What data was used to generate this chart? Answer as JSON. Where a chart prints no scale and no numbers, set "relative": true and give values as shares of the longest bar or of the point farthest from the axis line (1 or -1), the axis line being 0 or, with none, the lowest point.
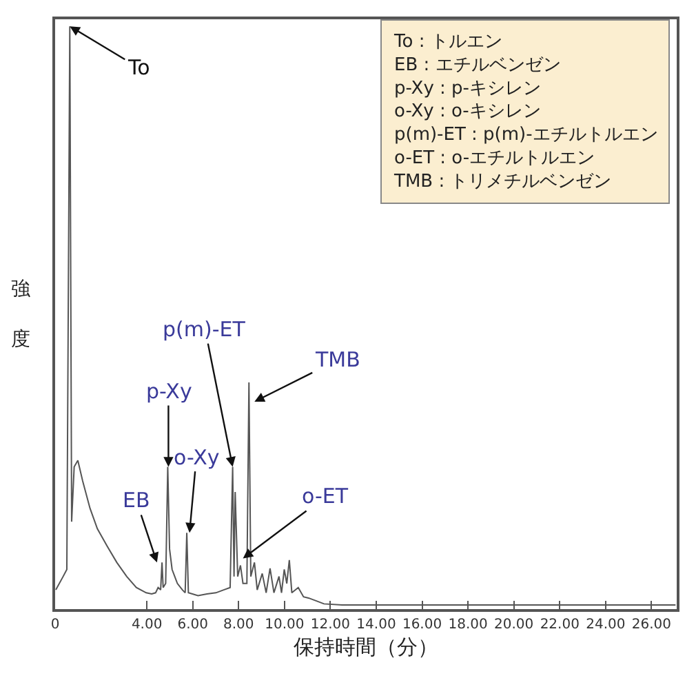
{
  "chart_data": {
    "type": "line",
    "relative": true,
    "xlabel": "保持時間（分）",
    "ylabel": "強度",
    "x": [
      0.03,
      0.35,
      0.51,
      0.64,
      0.72,
      0.83,
      0.99,
      1.2,
      1.52,
      1.84,
      2.27,
      2.69,
      3.12,
      3.54,
      3.97,
      4.21,
      4.38,
      4.49,
      4.6,
      4.66,
      4.71,
      4.82,
      4.91,
      4.99,
      5.1,
      5.33,
      5.55,
      5.67,
      5.74,
      5.81,
      6.23,
      6.62,
      7.01,
      7.35,
      7.63,
      7.74,
      7.8,
      7.85,
      7.96,
      8.08,
      8.19,
      8.36,
      8.45,
      8.53,
      8.69,
      8.81,
      9.03,
      9.2,
      9.37,
      9.54,
      9.76,
      9.87,
      9.99,
      10.1,
      10.21,
      10.32,
      10.6,
      10.83,
      11.05,
      11.39,
      11.72,
      12.51,
      14.19,
      27.05
    ],
    "series": [
      {
        "color": "#555555",
        "values": [
          0.033,
          0.056,
          0.068,
          1.0,
          0.15,
          0.244,
          0.255,
          0.22,
          0.173,
          0.138,
          0.108,
          0.08,
          0.056,
          0.037,
          0.028,
          0.026,
          0.028,
          0.037,
          0.033,
          0.08,
          0.037,
          0.044,
          0.244,
          0.103,
          0.068,
          0.044,
          0.033,
          0.028,
          0.131,
          0.028,
          0.023,
          0.026,
          0.028,
          0.033,
          0.037,
          0.244,
          0.056,
          0.201,
          0.056,
          0.075,
          0.044,
          0.044,
          0.389,
          0.056,
          0.08,
          0.033,
          0.061,
          0.028,
          0.07,
          0.028,
          0.056,
          0.028,
          0.068,
          0.044,
          0.084,
          0.028,
          0.037,
          0.021,
          0.019,
          0.014,
          0.009,
          0.007,
          0.007,
          0.007
        ]
      }
    ],
    "xlim": [
      0,
      27.1
    ],
    "xticks": [
      0,
      {
        "value": 4,
        "label": "4.00"
      },
      {
        "value": 6,
        "label": "6.00"
      },
      {
        "value": 8,
        "label": "8.00"
      },
      {
        "value": 10,
        "label": "10.00"
      },
      {
        "value": 12,
        "label": "12.00"
      },
      {
        "value": 14,
        "label": "14.00"
      },
      {
        "value": 16,
        "label": "16.00"
      },
      {
        "value": 18,
        "label": "18.00"
      },
      {
        "value": 20,
        "label": "20.00"
      },
      {
        "value": 22,
        "label": "22.00"
      },
      {
        "value": 24,
        "label": "24.00"
      },
      {
        "value": 26,
        "label": "26.00"
      }
    ],
    "legend": false,
    "marker": "none",
    "line_style": "solid",
    "annotations": [
      {
        "text": "To",
        "x": 0.64,
        "y": 1.0
      },
      {
        "text": "EB",
        "x": 4.44,
        "y": 0.08
      },
      {
        "text": "p-Xy",
        "x": 4.94,
        "y": 0.244
      },
      {
        "text": "o-Xy",
        "x": 5.86,
        "y": 0.131
      },
      {
        "text": "p(m)-ET",
        "x": 7.74,
        "y": 0.244
      },
      {
        "text": "TMB",
        "x": 8.69,
        "y": 0.356
      },
      {
        "text": "o-ET",
        "x": 8.19,
        "y": 0.087
      },
      "To : トルエン",
      "EB : エチルベンゼン",
      "p-Xy : p-キシレン",
      "o-Xy : o-キシレン",
      "p(m)-ET : p(m)-エチルトルエン",
      "o-ET : o-エチルトルエン",
      "TMB : トリメチルベンゼン"
    ]
  }
}
